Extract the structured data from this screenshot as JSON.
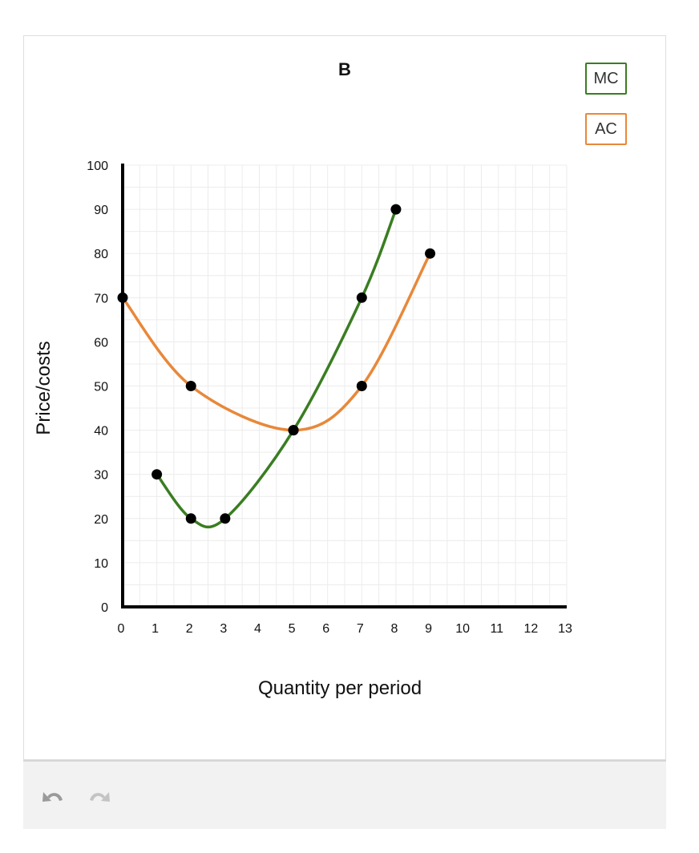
{
  "chart_data": {
    "type": "line",
    "title": "B",
    "xlabel": "Quantity per period",
    "ylabel": "Price/costs",
    "xlim": [
      0,
      13
    ],
    "ylim": [
      0,
      100
    ],
    "x_ticks": [
      0,
      1,
      2,
      3,
      4,
      5,
      6,
      7,
      8,
      9,
      10,
      11,
      12,
      13
    ],
    "y_ticks": [
      0,
      10,
      20,
      30,
      40,
      50,
      60,
      70,
      80,
      90,
      100
    ],
    "grid": true,
    "legend_placement": "top-right",
    "series": [
      {
        "name": "MC",
        "color": "#3a7d22",
        "points": [
          [
            1,
            30
          ],
          [
            2,
            20
          ],
          [
            3,
            20
          ],
          [
            5,
            40
          ],
          [
            7,
            70
          ],
          [
            8,
            90
          ]
        ]
      },
      {
        "name": "AC",
        "color": "#e8883a",
        "points": [
          [
            0,
            70
          ],
          [
            2,
            50
          ],
          [
            5,
            40
          ],
          [
            7,
            50
          ],
          [
            9,
            80
          ]
        ]
      }
    ]
  },
  "toolbar": {
    "undo_icon": "undo-icon",
    "redo_icon": "redo-icon"
  }
}
